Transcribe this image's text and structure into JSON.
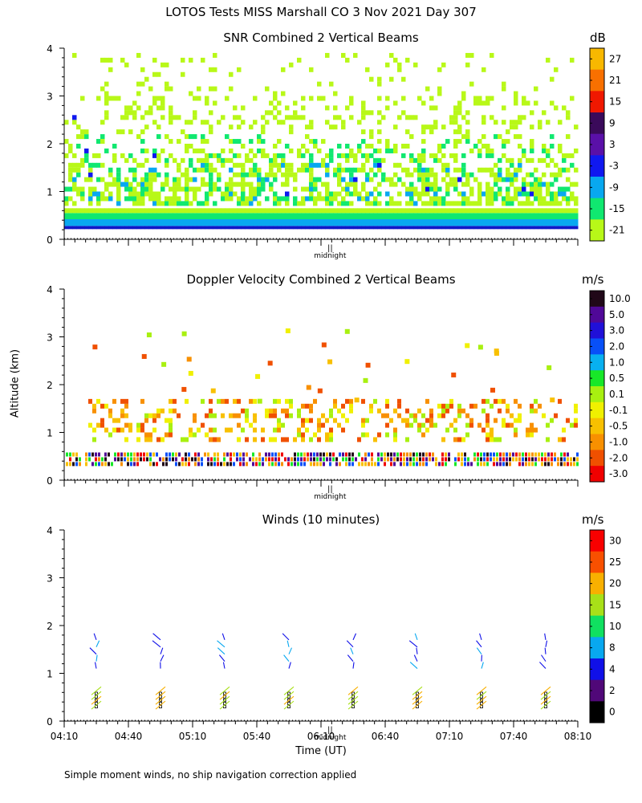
{
  "title": "LOTOS Tests MISS Marshall CO   3 Nov 2021 Day 307",
  "ylabel": "Altitude (km)",
  "xlabel": "Time (UT)",
  "footnote": "Simple moment winds, no ship navigation correction applied",
  "midnight_label": "midnight",
  "midnight_marker": "||",
  "chart_data": [
    {
      "type": "heatmap",
      "title": "SNR Combined 2 Vertical Beams",
      "colorbar_unit": "dB",
      "colorbar_ticks": [
        "27",
        "21",
        "15",
        "9",
        "3",
        "-3",
        "-9",
        "-15",
        "-21"
      ],
      "colorbar_colors": [
        "#f8b800",
        "#f87000",
        "#f01800",
        "#3a0a5a",
        "#5a10a8",
        "#1018f0",
        "#08a8f0",
        "#10e870",
        "#b8f818"
      ],
      "yticks": [
        "0",
        "1",
        "2",
        "3",
        "4"
      ],
      "ylim": [
        0,
        4
      ],
      "xlim_minutes": [
        250,
        490
      ]
    },
    {
      "type": "heatmap",
      "title": "Doppler Velocity Combined 2 Vertical Beams",
      "colorbar_unit": "m/s",
      "colorbar_ticks": [
        "10.0",
        "5.0",
        "3.0",
        "2.0",
        "1.0",
        "0.5",
        "0.1",
        "-0.1",
        "-0.5",
        "-1.0",
        "-2.0",
        "-3.0"
      ],
      "colorbar_colors": [
        "#200818",
        "#500898",
        "#2010d8",
        "#0850f8",
        "#08b0f0",
        "#18e828",
        "#a8f010",
        "#f0f000",
        "#f8c000",
        "#f89000",
        "#f05000",
        "#f00000"
      ],
      "yticks": [
        "0",
        "1",
        "2",
        "3",
        "4"
      ],
      "ylim": [
        0,
        4
      ],
      "xlim_minutes": [
        250,
        490
      ]
    },
    {
      "type": "barbs",
      "title": "Winds (10 minutes)",
      "colorbar_unit": "m/s",
      "colorbar_ticks": [
        "30",
        "25",
        "20",
        "15",
        "10",
        "8",
        "4",
        "2",
        "0"
      ],
      "colorbar_colors": [
        "#f80000",
        "#f85000",
        "#f8b000",
        "#a8e018",
        "#10e060",
        "#08a8f0",
        "#1010e8",
        "#500878",
        "#000000"
      ],
      "yticks": [
        "0",
        "1",
        "2",
        "3",
        "4"
      ],
      "xticks": [
        "04:10",
        "04:40",
        "05:10",
        "05:40",
        "06:10",
        "06:40",
        "07:10",
        "07:40",
        "08:10"
      ],
      "ylim": [
        0,
        4
      ],
      "xlim_minutes": [
        250,
        490
      ],
      "profiles_time_minutes": [
        265,
        295,
        325,
        355,
        385,
        415,
        445,
        475
      ]
    }
  ]
}
